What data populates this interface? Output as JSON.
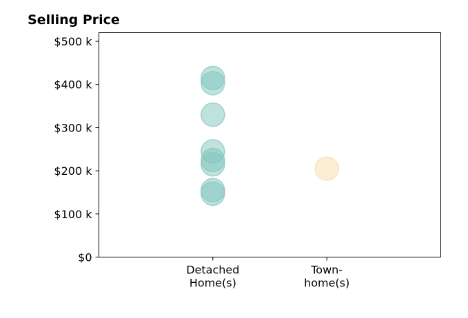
{
  "chart_data": {
    "type": "scatter",
    "title": "Selling Price",
    "xlabel": "",
    "ylabel": "",
    "categories": [
      {
        "label_lines": [
          "Detached",
          "Home(s)"
        ]
      },
      {
        "label_lines": [
          "Town-",
          "home(s)"
        ]
      }
    ],
    "xlim": [
      -1,
      2
    ],
    "ylim": [
      0,
      520000
    ],
    "y_ticks": [
      {
        "value": 0,
        "label": "$0"
      },
      {
        "value": 100000,
        "label": "$100 k"
      },
      {
        "value": 200000,
        "label": "$200 k"
      },
      {
        "value": 300000,
        "label": "$300 k"
      },
      {
        "value": 400000,
        "label": "$400 k"
      },
      {
        "value": 500000,
        "label": "$500 k"
      }
    ],
    "grid": false,
    "legend": "none",
    "series": [
      {
        "category_index": 0,
        "color": "#7fc5bd",
        "values": [
          415000,
          403000,
          330000,
          245000,
          225000,
          215000,
          155000,
          147000
        ]
      },
      {
        "category_index": 1,
        "color": "#f5deaa",
        "values": [
          205000
        ]
      }
    ]
  }
}
